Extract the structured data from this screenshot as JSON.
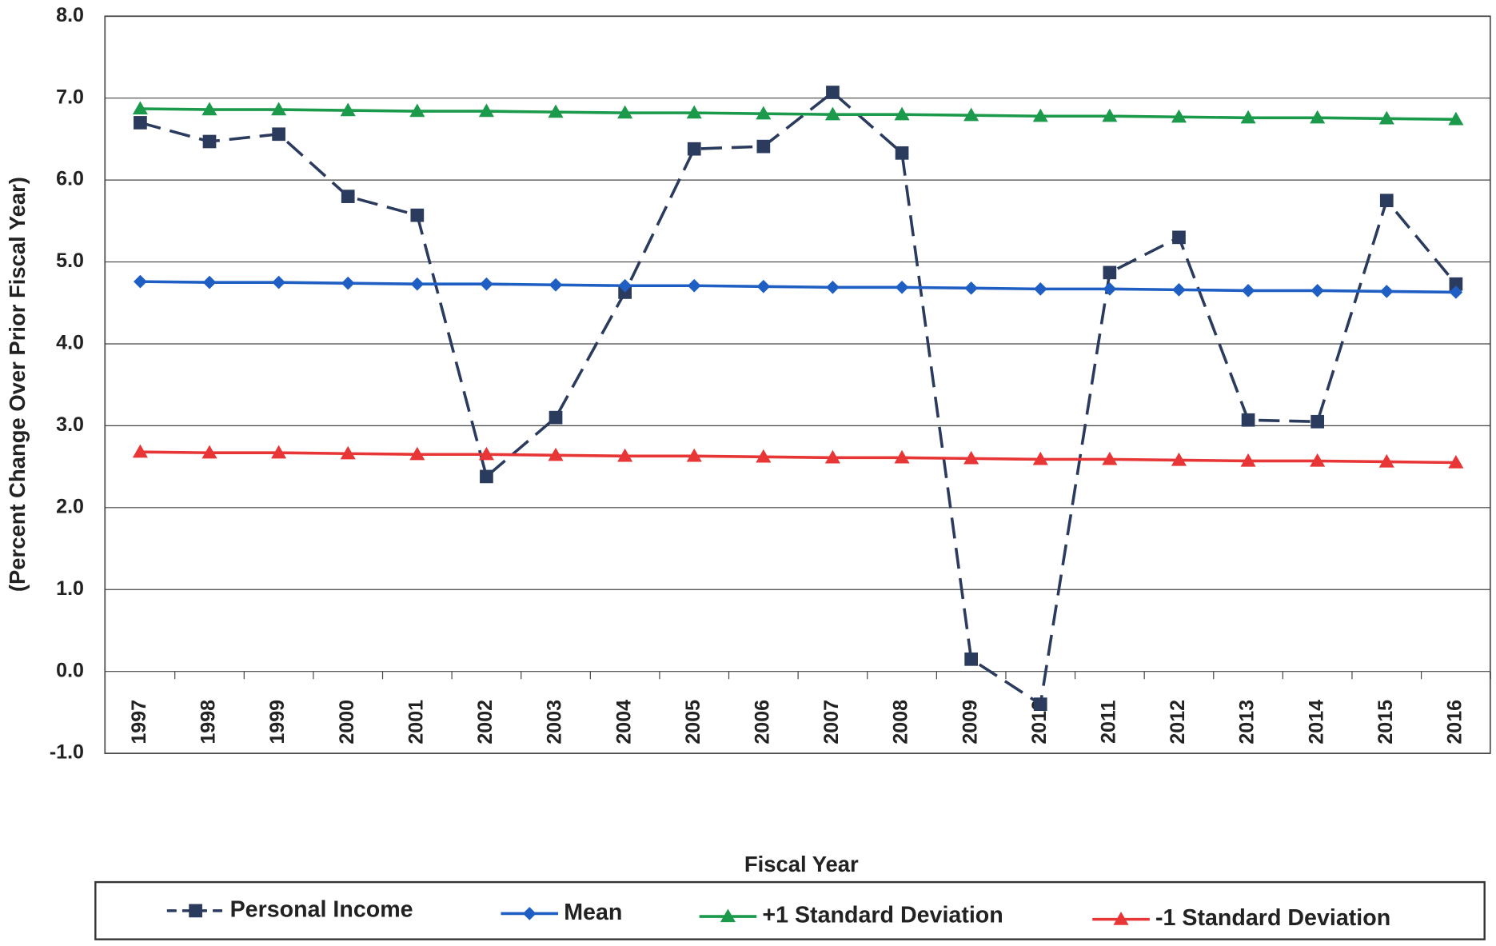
{
  "chart_data": {
    "type": "line",
    "x_label": "Fiscal Year",
    "y_label": "(Percent Change Over Prior Fiscal Year)",
    "categories": [
      "1997",
      "1998",
      "1999",
      "2000",
      "2001",
      "2002",
      "2003",
      "2004",
      "2005",
      "2006",
      "2007",
      "2008",
      "2009",
      "2010",
      "2011",
      "2012",
      "2013",
      "2014",
      "2015",
      "2016"
    ],
    "ylim": [
      -1,
      8
    ],
    "yticks": [
      {
        "value": -1,
        "label": "-1.0"
      },
      {
        "value": 0,
        "label": "0.0"
      },
      {
        "value": 1,
        "label": "1.0"
      },
      {
        "value": 2,
        "label": "2.0"
      },
      {
        "value": 3,
        "label": "3.0"
      },
      {
        "value": 4,
        "label": "4.0"
      },
      {
        "value": 5,
        "label": "5.0"
      },
      {
        "value": 6,
        "label": "6.0"
      },
      {
        "value": 7,
        "label": "7.0"
      },
      {
        "value": 8,
        "label": "8.0"
      }
    ],
    "grid": true,
    "legend": "bottom",
    "series": [
      {
        "name": "Personal Income",
        "color": "#2b3b5e",
        "dashed": true,
        "marker": "square",
        "values": [
          6.7,
          6.47,
          6.56,
          5.8,
          5.57,
          2.38,
          3.1,
          4.63,
          6.38,
          6.41,
          7.07,
          6.33,
          0.15,
          -0.4,
          4.87,
          5.3,
          3.07,
          3.05,
          5.75,
          4.73
        ]
      },
      {
        "name": "Mean",
        "color": "#1f5fc4",
        "marker": "diamond",
        "values": [
          4.76,
          4.75,
          4.75,
          4.74,
          4.73,
          4.73,
          4.72,
          4.71,
          4.71,
          4.7,
          4.69,
          4.69,
          4.68,
          4.67,
          4.67,
          4.66,
          4.65,
          4.65,
          4.64,
          4.63
        ]
      },
      {
        "name": "+1 Standard Deviation",
        "color": "#1a9a4a",
        "marker": "triangle",
        "values": [
          6.87,
          6.86,
          6.86,
          6.85,
          6.84,
          6.84,
          6.83,
          6.82,
          6.82,
          6.81,
          6.8,
          6.8,
          6.79,
          6.78,
          6.78,
          6.77,
          6.76,
          6.76,
          6.75,
          6.74
        ]
      },
      {
        "name": "-1 Standard Deviation",
        "color": "#e83535",
        "marker": "triangle",
        "values": [
          2.68,
          2.67,
          2.67,
          2.66,
          2.65,
          2.65,
          2.64,
          2.63,
          2.63,
          2.62,
          2.61,
          2.61,
          2.6,
          2.59,
          2.59,
          2.58,
          2.57,
          2.57,
          2.56,
          2.55
        ]
      }
    ]
  }
}
